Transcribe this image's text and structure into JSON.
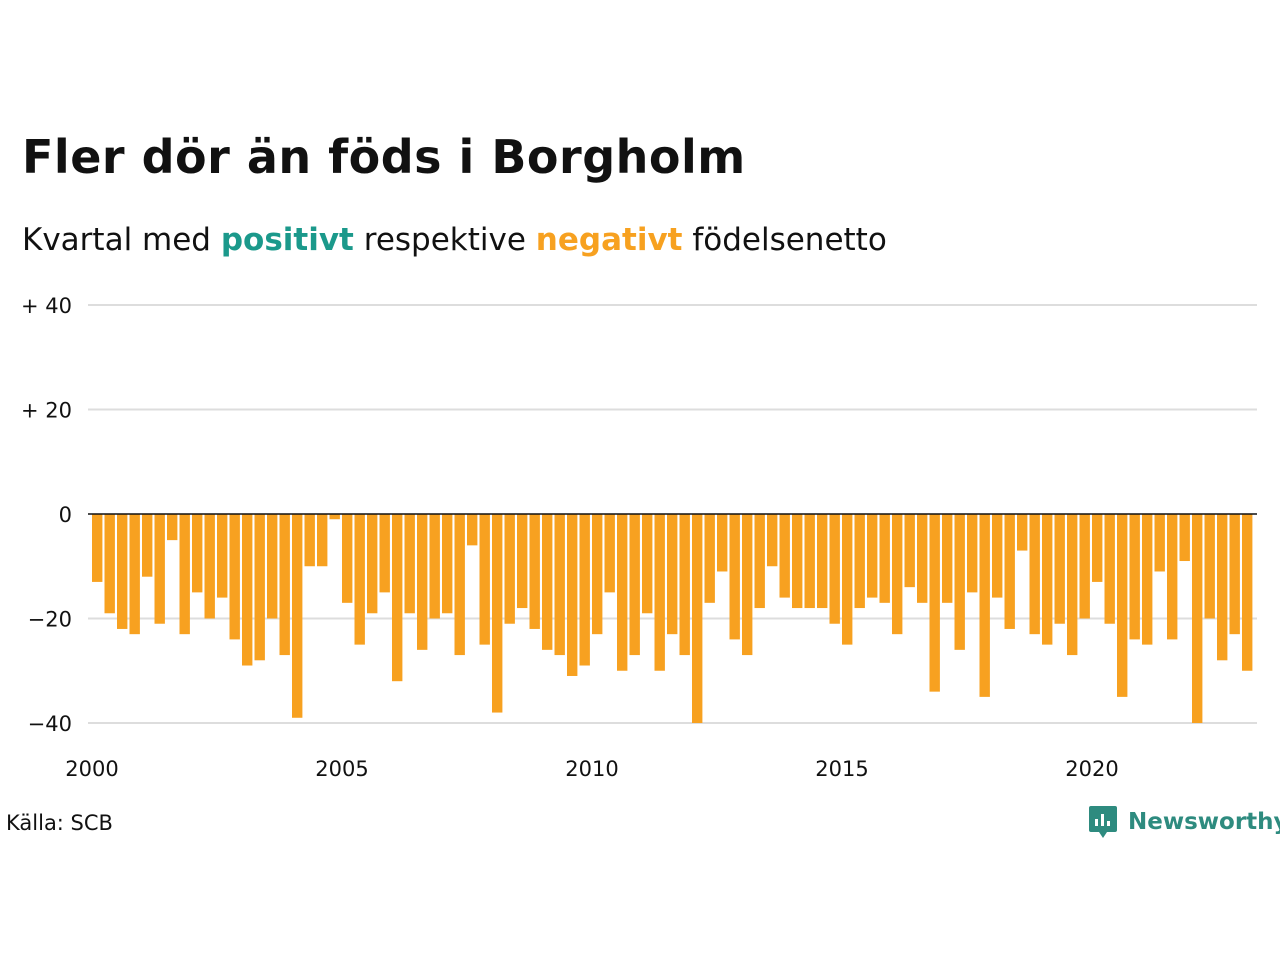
{
  "title": "Fler dör än föds i Borgholm",
  "subtitle": {
    "prefix": "Kvartal med",
    "positive": "positivt",
    "middle": "respektive",
    "negative": "negativt",
    "suffix": "födelsenetto"
  },
  "source": "Källa: SCB",
  "brand": "Newsworthy",
  "colors": {
    "positive": "#1b998b",
    "negative": "#f7a120",
    "grid": "#dddddd",
    "zero_line": "#111111",
    "brand": "#2e8b7f"
  },
  "chart_data": {
    "type": "bar",
    "title": "Fler dör än föds i Borgholm",
    "subtitle": "Kvartal med positivt respektive negativt födelsenetto",
    "xlabel": "",
    "ylabel": "",
    "x_start": 2000,
    "periods_per_year": 4,
    "ylim": [
      -40,
      40
    ],
    "y_ticks": [
      {
        "value": 40,
        "label": "+ 40"
      },
      {
        "value": 20,
        "label": "+ 20"
      },
      {
        "value": 0,
        "label": "0"
      },
      {
        "value": -20,
        "label": "−20"
      },
      {
        "value": -40,
        "label": "−40"
      }
    ],
    "x_ticks": [
      "2000",
      "2005",
      "2010",
      "2015",
      "2020"
    ],
    "grid": true,
    "values": [
      -13,
      -19,
      -22,
      -23,
      -12,
      -21,
      -5,
      -23,
      -15,
      -20,
      -16,
      -24,
      -29,
      -28,
      -20,
      -27,
      -39,
      -10,
      -10,
      -1,
      -17,
      -25,
      -19,
      -15,
      -32,
      -19,
      -26,
      -20,
      -19,
      -27,
      -6,
      -25,
      -38,
      -21,
      -18,
      -22,
      -26,
      -27,
      -31,
      -29,
      -23,
      -15,
      -30,
      -27,
      -19,
      -30,
      -23,
      -27,
      -40,
      -17,
      -11,
      -24,
      -27,
      -18,
      -10,
      -16,
      -18,
      -18,
      -18,
      -21,
      -25,
      -18,
      -16,
      -17,
      -23,
      -14,
      -17,
      -34,
      -17,
      -26,
      -15,
      -35,
      -16,
      -22,
      -7,
      -23,
      -25,
      -21,
      -27,
      -20,
      -13,
      -21,
      -35,
      -24,
      -25,
      -11,
      -24,
      -9,
      -40,
      -20,
      -28,
      -23,
      -30
    ]
  }
}
